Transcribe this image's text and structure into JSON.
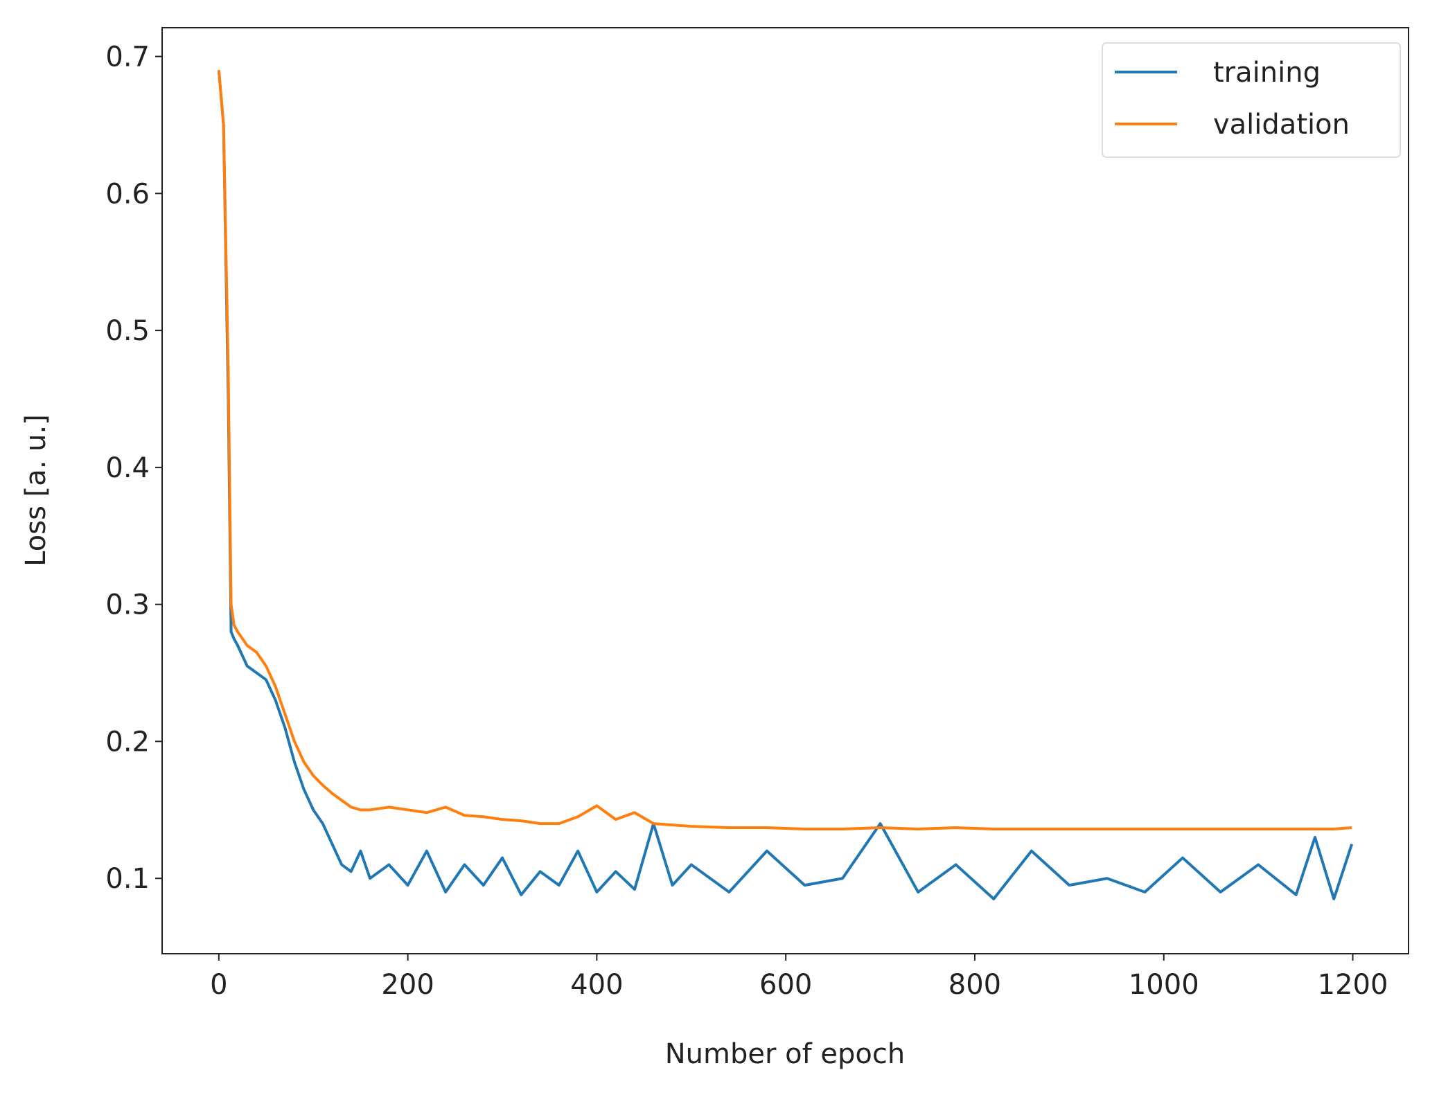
{
  "chart_data": {
    "type": "line",
    "xlabel": "Number of epoch",
    "ylabel": "Loss [a. u.]",
    "x": [
      0,
      5,
      10,
      13,
      16,
      20,
      30,
      40,
      50,
      60,
      70,
      80,
      90,
      100,
      110,
      120,
      130,
      140,
      150,
      160,
      180,
      200,
      220,
      240,
      260,
      280,
      300,
      320,
      340,
      360,
      380,
      400,
      420,
      440,
      460,
      480,
      500,
      540,
      580,
      620,
      660,
      700,
      740,
      780,
      820,
      860,
      900,
      940,
      980,
      1020,
      1060,
      1100,
      1140,
      1160,
      1180,
      1199
    ],
    "series": [
      {
        "name": "training",
        "color": "#1f77b4",
        "values": [
          0.69,
          0.65,
          0.45,
          0.28,
          0.275,
          0.27,
          0.255,
          0.25,
          0.245,
          0.23,
          0.21,
          0.185,
          0.165,
          0.15,
          0.14,
          0.125,
          0.11,
          0.105,
          0.12,
          0.1,
          0.11,
          0.095,
          0.12,
          0.09,
          0.11,
          0.095,
          0.115,
          0.088,
          0.105,
          0.095,
          0.12,
          0.09,
          0.105,
          0.092,
          0.14,
          0.095,
          0.11,
          0.09,
          0.12,
          0.095,
          0.1,
          0.14,
          0.09,
          0.11,
          0.085,
          0.12,
          0.095,
          0.1,
          0.09,
          0.115,
          0.09,
          0.11,
          0.088,
          0.13,
          0.085,
          0.125
        ]
      },
      {
        "name": "validation",
        "color": "#ff7f0e",
        "values": [
          0.69,
          0.65,
          0.47,
          0.3,
          0.285,
          0.28,
          0.27,
          0.265,
          0.255,
          0.24,
          0.22,
          0.2,
          0.185,
          0.175,
          0.168,
          0.162,
          0.157,
          0.152,
          0.15,
          0.15,
          0.152,
          0.15,
          0.148,
          0.152,
          0.146,
          0.145,
          0.143,
          0.142,
          0.14,
          0.14,
          0.145,
          0.153,
          0.143,
          0.148,
          0.14,
          0.139,
          0.138,
          0.137,
          0.137,
          0.136,
          0.136,
          0.137,
          0.136,
          0.137,
          0.136,
          0.136,
          0.136,
          0.136,
          0.136,
          0.136,
          0.136,
          0.136,
          0.136,
          0.136,
          0.136,
          0.137
        ]
      }
    ],
    "xlim": [
      -60,
      1259
    ],
    "ylim": [
      0.045,
      0.721
    ],
    "xticks": [
      0,
      200,
      400,
      600,
      800,
      1000,
      1200
    ],
    "yticks": [
      0.1,
      0.2,
      0.3,
      0.4,
      0.5,
      0.6,
      0.7
    ],
    "legend": "upper right"
  }
}
